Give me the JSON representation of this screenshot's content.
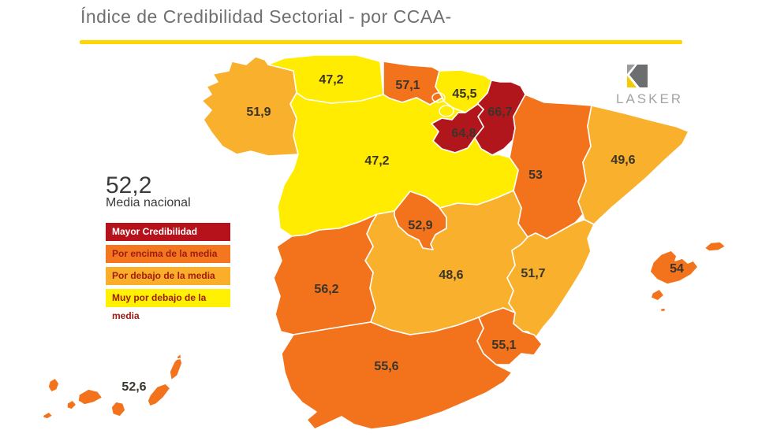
{
  "title": "Índice de Credibilidad Sectorial - por CCAA-",
  "logo": {
    "text": "LASKER"
  },
  "national_average": {
    "value": "52,2",
    "label": "Media nacional"
  },
  "legend": [
    {
      "label": "Mayor Credibilidad",
      "color": "#b5121b",
      "text_color": "#ffffff"
    },
    {
      "label": "Por encima de la media",
      "color": "#f4771f",
      "text_color": "#9e1b12"
    },
    {
      "label": "Por debajo de la media",
      "color": "#faae29",
      "text_color": "#9e1b12"
    },
    {
      "label": "Muy por debajo de la media",
      "color": "#fff101",
      "text_color": "#9e1b12"
    }
  ],
  "colors": {
    "rule": "#ffd600",
    "title": "#6f6f6f",
    "label": "#3a352b"
  },
  "category_colors": {
    "mayor": "#b2161d",
    "por-encima": "#f3731d",
    "por-debajo": "#f9b02c",
    "muy-por-debajo": "#ffec00"
  },
  "chart_data": {
    "type": "choropleth_map",
    "title": "Índice de Credibilidad Sectorial - por CCAA-",
    "national_average": 52.2,
    "legend_categories": [
      "Mayor Credibilidad",
      "Por encima de la media",
      "Por debajo de la media",
      "Muy por debajo de la media"
    ],
    "regions": [
      {
        "id": "galicia",
        "name": "Galicia",
        "value": "51,9",
        "category": "por-debajo"
      },
      {
        "id": "asturias",
        "name": "Asturias",
        "value": "47,2",
        "category": "muy-por-debajo"
      },
      {
        "id": "cantabria",
        "name": "Cantabria",
        "value": "57,1",
        "category": "por-encima"
      },
      {
        "id": "pais_vasco",
        "name": "País Vasco",
        "value": "45,5",
        "category": "muy-por-debajo"
      },
      {
        "id": "navarra",
        "name": "Navarra",
        "value": "66,7",
        "category": "mayor"
      },
      {
        "id": "la_rioja",
        "name": "La Rioja",
        "value": "64,8",
        "category": "mayor"
      },
      {
        "id": "aragon",
        "name": "Aragón",
        "value": "53",
        "category": "por-encima"
      },
      {
        "id": "cataluna",
        "name": "Cataluña",
        "value": "49,6",
        "category": "por-debajo"
      },
      {
        "id": "castilla_leon",
        "name": "Castilla y León",
        "value": "47,2",
        "category": "muy-por-debajo"
      },
      {
        "id": "madrid",
        "name": "Madrid",
        "value": "52,9",
        "category": "por-encima"
      },
      {
        "id": "castilla_mancha",
        "name": "Castilla-La Mancha",
        "value": "48,6",
        "category": "por-debajo"
      },
      {
        "id": "valencia",
        "name": "Comunidad Valenciana",
        "value": "51,7",
        "category": "por-debajo"
      },
      {
        "id": "extremadura",
        "name": "Extremadura",
        "value": "56,2",
        "category": "por-encima"
      },
      {
        "id": "andalucia",
        "name": "Andalucía",
        "value": "55,6",
        "category": "por-encima"
      },
      {
        "id": "murcia",
        "name": "Murcia",
        "value": "55,1",
        "category": "por-encima"
      },
      {
        "id": "baleares",
        "name": "Baleares",
        "value": "54",
        "category": "por-encima"
      },
      {
        "id": "canarias",
        "name": "Canarias",
        "value": "52,6",
        "category": "por-encima",
        "label_color": "#8a8a8a"
      }
    ]
  }
}
